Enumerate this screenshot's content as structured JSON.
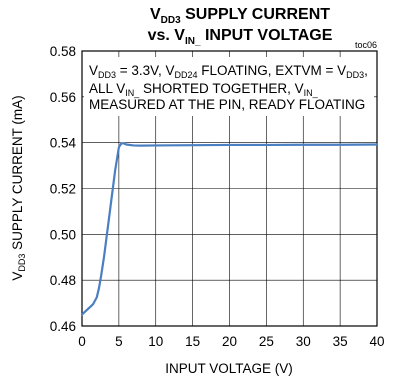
{
  "chart_data": {
    "type": "line",
    "title": {
      "line1": {
        "main": "V",
        "sub": "DD3",
        "rest": " SUPPLY CURRENT"
      },
      "line2": {
        "pre": "vs. V",
        "sub": "IN_",
        "rest": " INPUT VOLTAGE"
      }
    },
    "figure_tag": "toc06",
    "xlabel": "INPUT VOLTAGE (V)",
    "ylabel": {
      "main": "V",
      "sub": "DD3",
      "rest": " SUPPLY CURRENT (mA)"
    },
    "xlim": [
      0,
      40
    ],
    "ylim": [
      0.46,
      0.58
    ],
    "x_ticks": [
      0,
      5,
      10,
      15,
      20,
      25,
      30,
      35,
      40
    ],
    "y_ticks": [
      "0.46",
      "0.48",
      "0.50",
      "0.52",
      "0.54",
      "0.56",
      "0.58"
    ],
    "annotation": {
      "line1": [
        {
          "t": "V"
        },
        {
          "t": "DD3",
          "sub": true
        },
        {
          "t": " = 3.3V, V"
        },
        {
          "t": "DD24",
          "sub": true
        },
        {
          "t": " FLOATING, EXTVM = V"
        },
        {
          "t": "DD3",
          "sub": true
        },
        {
          "t": ","
        }
      ],
      "line2": [
        {
          "t": "ALL V"
        },
        {
          "t": "IN_",
          "sub": true
        },
        {
          "t": " SHORTED TOGETHER, V"
        },
        {
          "t": "IN_",
          "sub": true
        }
      ],
      "line3": [
        {
          "t": "MEASURED AT THE PIN, READY FLOATING"
        }
      ]
    },
    "grid": true,
    "line_color": "#4a7fc1",
    "series": [
      {
        "x": [
          0,
          0.5,
          1,
          1.5,
          2,
          2.3,
          2.6,
          3,
          3.5,
          4,
          4.5,
          5,
          5.3,
          5.6,
          6,
          7,
          8,
          10,
          15,
          20,
          25,
          30,
          35,
          40
        ],
        "y": [
          0.465,
          0.4665,
          0.468,
          0.4695,
          0.4725,
          0.4765,
          0.482,
          0.4905,
          0.503,
          0.5155,
          0.528,
          0.538,
          0.5395,
          0.5398,
          0.5392,
          0.5388,
          0.5387,
          0.5388,
          0.5389,
          0.539,
          0.539,
          0.5391,
          0.5391,
          0.5392
        ]
      }
    ]
  }
}
